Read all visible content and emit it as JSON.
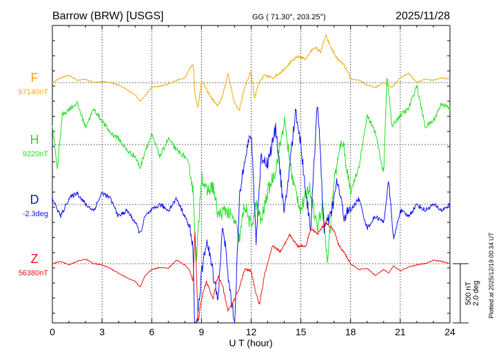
{
  "header": {
    "station": "Barrow (BRW)  [USGS]",
    "coords": "GG ( 71.30°, 203.25°)",
    "date": "2025/11/28"
  },
  "plotted_note": "Plotted at 2025/12/19 00:34 UT",
  "scale": {
    "nt": "500 nT",
    "deg": "2.0 deg"
  },
  "chart_data": {
    "type": "line",
    "xlabel": "U T (hour)",
    "xlim": [
      0,
      24
    ],
    "xticks": [
      0,
      3,
      6,
      9,
      12,
      15,
      18,
      21,
      24
    ],
    "tick_labels": [
      "0",
      "3",
      "6",
      "9",
      "12",
      "15",
      "18",
      "21",
      "24"
    ],
    "grid": true,
    "series_units": "offset from baseline in nT (D in deg, 500 nT = 2.0 deg)",
    "series": [
      {
        "name": "F",
        "baseline_label": "57140nT",
        "color": "#f0a800",
        "x": [
          0,
          0.5,
          1,
          1.5,
          2,
          2.5,
          3,
          3.5,
          4,
          4.5,
          5,
          5.3,
          5.6,
          6,
          6.5,
          7,
          7.5,
          8,
          8.3,
          8.5,
          8.6,
          8.8,
          9,
          9.3,
          9.7,
          10,
          10.3,
          10.6,
          11,
          11.3,
          11.6,
          12,
          12.2,
          12.4,
          12.8,
          13.3,
          13.8,
          14.3,
          14.8,
          15.3,
          15.8,
          16.2,
          16.5,
          16.8,
          17.2,
          17.6,
          18,
          18.5,
          19,
          19.5,
          20,
          20.5,
          21,
          21.5,
          22,
          22.5,
          23,
          23.5,
          24
        ],
        "y": [
          0,
          40,
          60,
          20,
          30,
          0,
          10,
          0,
          -20,
          -60,
          -100,
          -160,
          -110,
          -40,
          -30,
          -10,
          20,
          40,
          120,
          160,
          -80,
          -220,
          20,
          -60,
          -150,
          -200,
          -100,
          80,
          -180,
          -230,
          -40,
          100,
          -130,
          -20,
          60,
          40,
          90,
          160,
          220,
          200,
          300,
          260,
          400,
          300,
          200,
          150,
          30,
          20,
          -20,
          -40,
          0,
          -40,
          40,
          80,
          0,
          30,
          20,
          40,
          30
        ]
      },
      {
        "name": "H",
        "baseline_label": "9220nT",
        "color": "#20dd20",
        "x": [
          0,
          0.3,
          0.6,
          1,
          1.5,
          2,
          2.5,
          3,
          3.5,
          4,
          4.5,
          5,
          5.3,
          5.6,
          6,
          6.5,
          7,
          7.5,
          8,
          8.3,
          8.5,
          8.7,
          9,
          9.3,
          9.7,
          10,
          10.5,
          11,
          11.3,
          11.6,
          12,
          12.3,
          12.6,
          13,
          13.5,
          14,
          14.5,
          15,
          15.5,
          16,
          16.3,
          16.6,
          17,
          17.5,
          18,
          18.5,
          19,
          19.5,
          20,
          20.2,
          20.5,
          21,
          21.5,
          22,
          22.5,
          23,
          23.5,
          24
        ],
        "y": [
          150,
          -200,
          250,
          300,
          350,
          150,
          300,
          200,
          100,
          50,
          -50,
          -100,
          -200,
          -50,
          80,
          -100,
          50,
          -50,
          -100,
          -200,
          -400,
          -1000,
          -250,
          -400,
          -350,
          -600,
          -550,
          -650,
          -800,
          -500,
          -700,
          -500,
          -650,
          -400,
          -200,
          200,
          -300,
          -550,
          -350,
          -700,
          -500,
          -1000,
          -300,
          50,
          -400,
          -200,
          250,
          100,
          -250,
          600,
          150,
          250,
          300,
          500,
          150,
          200,
          350,
          300
        ]
      },
      {
        "name": "D",
        "baseline_label": "-2.3deg",
        "color": "#1010ee",
        "x": [
          0,
          0.5,
          1,
          1.5,
          2,
          2.5,
          3,
          3.5,
          4,
          4.5,
          5,
          5.3,
          5.6,
          6,
          6.5,
          7,
          7.5,
          8,
          8.3,
          8.5,
          8.6,
          8.8,
          9,
          9.3,
          9.6,
          10,
          10.3,
          10.6,
          11,
          11.3,
          11.6,
          12,
          12.3,
          12.6,
          13,
          13.5,
          14,
          14.3,
          14.7,
          15,
          15.3,
          15.6,
          16,
          16.4,
          16.8,
          17.2,
          17.6,
          18,
          18.5,
          19,
          19.5,
          20,
          20.3,
          20.6,
          21,
          21.5,
          22,
          22.5,
          23,
          23.5,
          24
        ],
        "y": [
          50,
          -100,
          50,
          100,
          0,
          -50,
          100,
          50,
          -100,
          -50,
          -150,
          -250,
          -100,
          -50,
          0,
          -50,
          50,
          -100,
          -200,
          -400,
          -1200,
          -900,
          -600,
          -300,
          -500,
          -800,
          -150,
          -600,
          -1000,
          50,
          400,
          600,
          -300,
          400,
          350,
          650,
          -100,
          300,
          800,
          500,
          100,
          -200,
          900,
          -200,
          -100,
          200,
          -100,
          -50,
          50,
          -200,
          -100,
          -150,
          200,
          -300,
          -50,
          -100,
          0,
          -50,
          0,
          -50,
          0
        ]
      },
      {
        "name": "Z",
        "baseline_label": "56380nT",
        "color": "#ee1010",
        "x": [
          0,
          0.5,
          1,
          1.5,
          2,
          2.5,
          3,
          3.5,
          4,
          4.5,
          5,
          5.3,
          5.6,
          6,
          6.5,
          7,
          7.5,
          8,
          8.3,
          8.5,
          8.6,
          8.8,
          9,
          9.3,
          9.7,
          10,
          10.3,
          10.6,
          11,
          11.3,
          11.6,
          12,
          12.2,
          12.5,
          12.8,
          13.3,
          13.8,
          14.3,
          14.8,
          15.3,
          15.6,
          16,
          16.5,
          17,
          17.3,
          17.6,
          18,
          18.5,
          19,
          19.5,
          20,
          20.3,
          20.6,
          21,
          21.5,
          22,
          22.5,
          23,
          23.5,
          24
        ],
        "y": [
          0,
          20,
          -10,
          20,
          40,
          0,
          -10,
          -40,
          -80,
          -120,
          -150,
          -200,
          -100,
          -50,
          -30,
          -40,
          30,
          -10,
          -60,
          -150,
          300,
          -500,
          -300,
          -150,
          -300,
          -100,
          -200,
          -400,
          -300,
          -200,
          -50,
          -60,
          -200,
          -350,
          -100,
          150,
          100,
          250,
          150,
          150,
          300,
          250,
          350,
          280,
          150,
          100,
          0,
          -50,
          -40,
          -100,
          -50,
          -80,
          -20,
          -60,
          -30,
          -10,
          0,
          30,
          20,
          0
        ]
      }
    ]
  }
}
